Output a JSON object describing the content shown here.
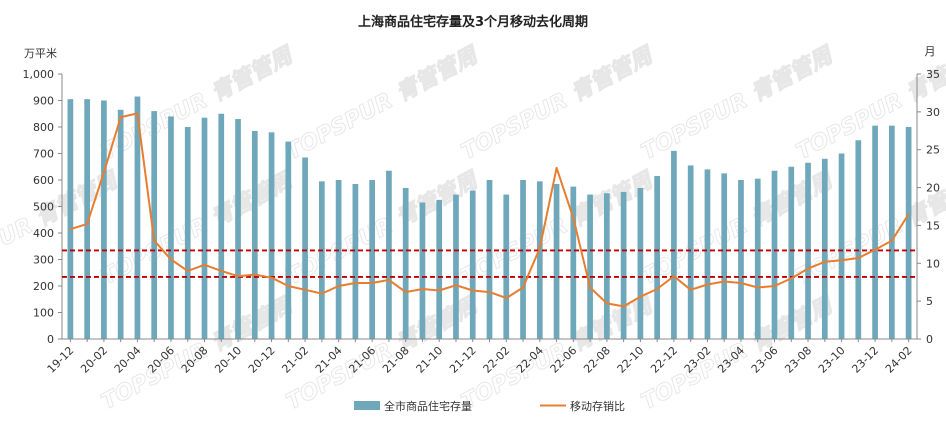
{
  "chart_data": {
    "type": "bar+line",
    "title": "上海商品住宅存量及3个月移动去化周期",
    "y_left_unit": "万平米",
    "y_right_unit": "月",
    "y_left_range": [
      0,
      1000
    ],
    "y_left_ticks": [
      "0",
      "100",
      "200",
      "300",
      "400",
      "500",
      "600",
      "700",
      "800",
      "900",
      "1,000"
    ],
    "y_right_range": [
      0,
      35
    ],
    "y_right_ticks": [
      "0",
      "5",
      "10",
      "15",
      "20",
      "25",
      "30",
      "35"
    ],
    "x": [
      "19-12",
      "20-01",
      "20-02",
      "20-03",
      "20-04",
      "20-05",
      "20-06",
      "20-07",
      "20-08",
      "20-09",
      "20-10",
      "20-11",
      "20-12",
      "21-01",
      "21-02",
      "21-03",
      "21-04",
      "21-05",
      "21-06",
      "21-07",
      "21-08",
      "21-09",
      "21-10",
      "21-11",
      "21-12",
      "22-01",
      "22-02",
      "22-03",
      "22-04",
      "22-05",
      "22-06",
      "22-07",
      "22-08",
      "22-09",
      "22-10",
      "22-11",
      "22-12",
      "23-01",
      "23-02",
      "23-03",
      "23-04",
      "23-05",
      "23-06",
      "23-07",
      "23-08",
      "23-09",
      "23-10",
      "23-11",
      "23-12",
      "24-01",
      "24-02"
    ],
    "x_tick_labels": [
      "19-12",
      "20-02",
      "20-04",
      "20-06",
      "20-08",
      "20-10",
      "20-12",
      "21-02",
      "21-04",
      "21-06",
      "21-08",
      "21-10",
      "21-12",
      "22-02",
      "22-04",
      "22-06",
      "22-08",
      "22-10",
      "22-12",
      "23-02",
      "23-04",
      "23-06",
      "23-08",
      "23-10",
      "23-12",
      "24-02"
    ],
    "series": [
      {
        "name": "全市商品住宅存量",
        "kind": "bar",
        "axis": "left",
        "color": "#6fa8bb",
        "values": [
          905,
          905,
          900,
          865,
          915,
          860,
          840,
          800,
          835,
          850,
          830,
          785,
          780,
          745,
          685,
          595,
          600,
          585,
          600,
          635,
          570,
          515,
          525,
          545,
          560,
          600,
          545,
          600,
          595,
          585,
          575,
          545,
          550,
          555,
          570,
          615,
          710,
          655,
          640,
          625,
          600,
          605,
          635,
          650,
          665,
          680,
          700,
          750,
          805,
          805,
          800
        ]
      },
      {
        "name": "移动存销比",
        "kind": "line",
        "axis": "right",
        "color": "#e87d2f",
        "values": [
          14.5,
          15.2,
          22.0,
          29.3,
          29.8,
          13.0,
          10.5,
          9.0,
          9.8,
          9.0,
          8.3,
          8.5,
          8.1,
          7.0,
          6.5,
          6.0,
          7.0,
          7.4,
          7.4,
          7.8,
          6.2,
          6.6,
          6.4,
          7.1,
          6.4,
          6.2,
          5.4,
          6.8,
          12.0,
          22.6,
          16.0,
          6.8,
          4.7,
          4.3,
          5.6,
          6.6,
          8.3,
          6.5,
          7.2,
          7.6,
          7.4,
          6.8,
          7.0,
          8.0,
          9.3,
          10.2,
          10.4,
          10.7,
          11.8,
          13.0,
          16.5
        ]
      }
    ],
    "reference_lines": [
      {
        "axis": "right",
        "value": 11.7,
        "color": "#c00000",
        "style": "dashed"
      },
      {
        "axis": "right",
        "value": 8.2,
        "color": "#c00000",
        "style": "dashed"
      }
    ],
    "watermark": "TOPSPUR 青管管周",
    "legend": "bottom",
    "grid": false
  }
}
